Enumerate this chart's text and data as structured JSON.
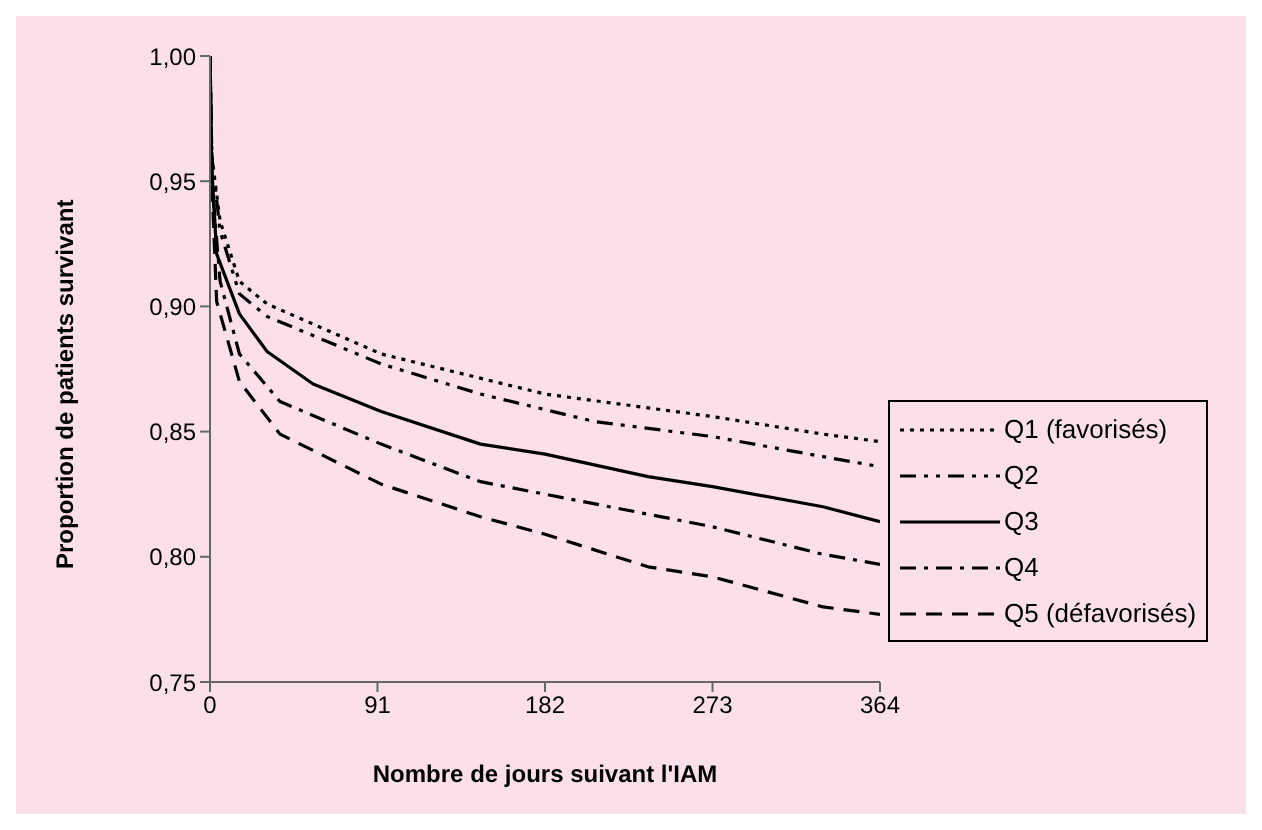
{
  "chart_data": {
    "type": "line",
    "xlabel": "Nombre de jours suivant l'IAM",
    "ylabel": "Proportion de patients survivant",
    "xlim": [
      0,
      364
    ],
    "xticks": [
      0,
      91,
      182,
      273,
      364
    ],
    "ylim": [
      0.75,
      1
    ],
    "yticks": [
      {
        "value": 0.75,
        "label": "0,75"
      },
      {
        "value": 0.8,
        "label": "0,80"
      },
      {
        "value": 0.85,
        "label": "0,85"
      },
      {
        "value": 0.9,
        "label": "0,90"
      },
      {
        "value": 0.95,
        "label": "0,95"
      },
      {
        "value": 1,
        "label": "1,00"
      }
    ],
    "grid": false,
    "legend": "right",
    "marker": "none",
    "series": [
      {
        "name": "Q1 (favorisés)",
        "color": "#000000",
        "line_style": "dotted",
        "x": [
          0,
          1,
          5.5,
          16,
          31,
          93,
          182,
          273,
          333,
          364
        ],
        "values": [
          1,
          0.96,
          0.934,
          0.91,
          0.901,
          0.881,
          0.865,
          0.856,
          0.849,
          0.846
        ]
      },
      {
        "name": "Q2",
        "color": "#000000",
        "line_style": "dashdotdot",
        "x": [
          0,
          1,
          5.5,
          16,
          31,
          93,
          147,
          209,
          273,
          333,
          364
        ],
        "values": [
          1,
          0.96,
          0.93,
          0.905,
          0.896,
          0.877,
          0.865,
          0.854,
          0.848,
          0.84,
          0.836
        ]
      },
      {
        "name": "Q3",
        "color": "#000000",
        "line_style": "solid",
        "x": [
          0,
          1,
          3.6,
          16,
          31,
          56,
          93,
          147,
          182,
          238,
          273,
          333,
          364
        ],
        "values": [
          1,
          0.955,
          0.921,
          0.897,
          0.882,
          0.869,
          0.858,
          0.845,
          0.841,
          0.832,
          0.828,
          0.82,
          0.814
        ]
      },
      {
        "name": "Q4",
        "color": "#000000",
        "line_style": "dashdot",
        "x": [
          0,
          1,
          5.5,
          16,
          38,
          93,
          147,
          182,
          273,
          333,
          364
        ],
        "values": [
          1,
          0.95,
          0.91,
          0.881,
          0.862,
          0.845,
          0.83,
          0.825,
          0.812,
          0.801,
          0.797
        ]
      },
      {
        "name": "Q5 (défavorisés)",
        "color": "#000000",
        "line_style": "dashed",
        "x": [
          0,
          1,
          3.6,
          16,
          38,
          93,
          147,
          182,
          238,
          273,
          333,
          364
        ],
        "values": [
          1,
          0.95,
          0.902,
          0.87,
          0.849,
          0.829,
          0.816,
          0.809,
          0.796,
          0.792,
          0.78,
          0.777
        ]
      }
    ]
  }
}
